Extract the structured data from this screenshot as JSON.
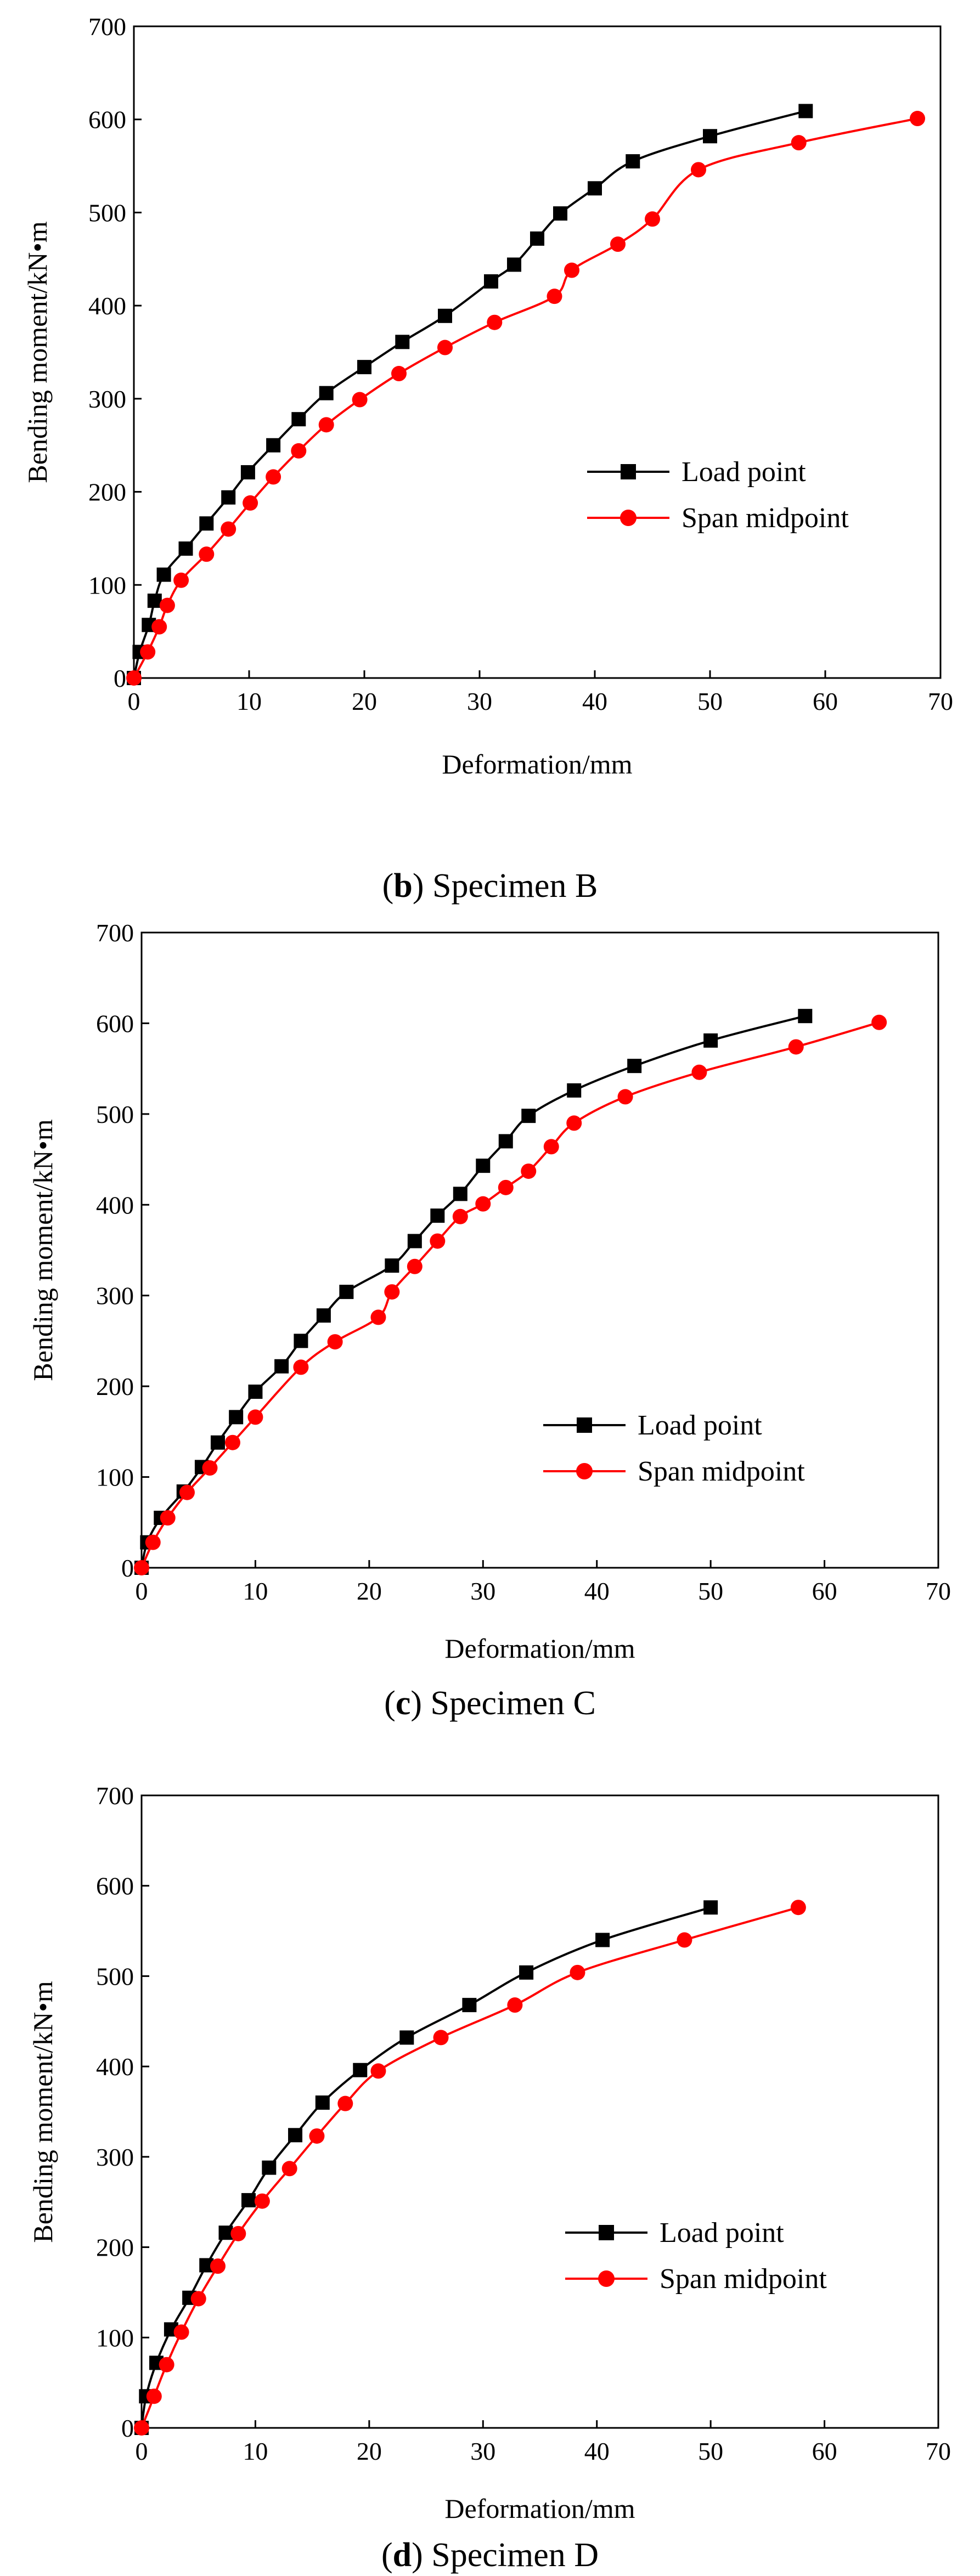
{
  "figure": {
    "panels": [
      {
        "caption": {
          "open": "(",
          "letter": "b",
          "rest": ") Specimen B"
        },
        "legend": {
          "series_1": "Load point",
          "series_2": "Span midpoint"
        }
      },
      {
        "caption": {
          "open": "(",
          "letter": "c",
          "rest": ") Specimen C"
        },
        "legend": {
          "series_1": "Load point",
          "series_2": "Span midpoint"
        }
      },
      {
        "caption": {
          "open": "(",
          "letter": "d",
          "rest": ") Specimen D"
        },
        "legend": {
          "series_1": "Load point",
          "series_2": "Span midpoint"
        }
      }
    ]
  },
  "chart_data": [
    {
      "type": "line",
      "title": "Specimen B",
      "xlabel": "Deformation/mm",
      "ylabel": "Bending moment/kN•m",
      "xlim": [
        0,
        70
      ],
      "ylim": [
        0,
        700
      ],
      "xticks": [
        0,
        10,
        20,
        30,
        40,
        50,
        60,
        70
      ],
      "yticks": [
        0,
        100,
        200,
        300,
        400,
        500,
        600,
        700
      ],
      "grid": false,
      "legend_position": "center-right",
      "series": [
        {
          "name": "Load point",
          "color": "#000000",
          "marker": "square",
          "x": [
            0,
            0.5,
            1.3,
            1.8,
            2.6,
            4.5,
            6.3,
            8.2,
            9.9,
            12.1,
            14.3,
            16.7,
            20.0,
            23.3,
            27.0,
            31.0,
            33.0,
            35.0,
            37.0,
            40.0,
            43.3,
            50.0,
            58.3
          ],
          "y": [
            0,
            28,
            57,
            83,
            111,
            139,
            166,
            194,
            221,
            250,
            278,
            306,
            334,
            361,
            389,
            426,
            444,
            472,
            499,
            526,
            555,
            582,
            609
          ]
        },
        {
          "name": "Span midpoint",
          "color": "#ff0000",
          "marker": "circle",
          "x": [
            0,
            1.2,
            2.2,
            2.9,
            4.1,
            6.3,
            8.2,
            10.1,
            12.1,
            14.3,
            16.7,
            19.6,
            23.0,
            27.0,
            31.3,
            36.5,
            38.0,
            42.0,
            45.0,
            49.0,
            57.7,
            68.0
          ],
          "y": [
            0,
            28,
            55,
            78,
            105,
            133,
            160,
            188,
            216,
            244,
            272,
            299,
            327,
            355,
            382,
            410,
            438,
            466,
            493,
            546,
            575,
            601
          ]
        }
      ]
    },
    {
      "type": "line",
      "title": "Specimen C",
      "xlabel": "Deformation/mm",
      "ylabel": "Bending moment/kN•m",
      "xlim": [
        0,
        70
      ],
      "ylim": [
        0,
        700
      ],
      "xticks": [
        0,
        10,
        20,
        30,
        40,
        50,
        60,
        70
      ],
      "yticks": [
        0,
        100,
        200,
        300,
        400,
        500,
        600,
        700
      ],
      "grid": false,
      "legend_position": "lower-right",
      "series": [
        {
          "name": "Load point",
          "color": "#000000",
          "marker": "square",
          "x": [
            0,
            0.5,
            1.7,
            3.7,
            5.3,
            6.7,
            8.3,
            10.0,
            12.3,
            14.0,
            16.0,
            18.0,
            22.0,
            24.0,
            26.0,
            28.0,
            30.0,
            32.0,
            34.0,
            38.0,
            43.3,
            50.0,
            58.3
          ],
          "y": [
            0,
            28,
            55,
            84,
            111,
            138,
            166,
            194,
            222,
            250,
            278,
            304,
            333,
            360,
            388,
            412,
            443,
            470,
            498,
            526,
            553,
            581,
            608
          ]
        },
        {
          "name": "Span midpoint",
          "color": "#ff0000",
          "marker": "circle",
          "x": [
            0,
            1.0,
            2.3,
            4.0,
            6.0,
            8.0,
            10.0,
            14.0,
            17.0,
            20.8,
            22.0,
            24.0,
            26.0,
            28.0,
            30.0,
            32.0,
            34.0,
            36.0,
            38.0,
            42.5,
            49.0,
            57.5,
            64.8
          ],
          "y": [
            0,
            28,
            55,
            83,
            110,
            138,
            166,
            221,
            249,
            276,
            304,
            332,
            360,
            387,
            401,
            419,
            437,
            464,
            490,
            519,
            546,
            574,
            601
          ]
        }
      ]
    },
    {
      "type": "line",
      "title": "Specimen D",
      "xlabel": "Deformation/mm",
      "ylabel": "Bending moment/kN•m",
      "xlim": [
        0,
        70
      ],
      "ylim": [
        0,
        700
      ],
      "xticks": [
        0,
        10,
        20,
        30,
        40,
        50,
        60,
        70
      ],
      "yticks": [
        0,
        100,
        200,
        300,
        400,
        500,
        600,
        700
      ],
      "grid": false,
      "legend_position": "lower-right",
      "series": [
        {
          "name": "Load point",
          "color": "#000000",
          "marker": "square",
          "x": [
            0,
            0.4,
            1.3,
            2.6,
            4.2,
            5.7,
            7.4,
            9.4,
            11.2,
            13.5,
            15.9,
            19.2,
            23.3,
            28.8,
            33.8,
            40.5,
            50.0
          ],
          "y": [
            0,
            35,
            72,
            109,
            144,
            180,
            216,
            252,
            288,
            324,
            360,
            396,
            432,
            468,
            504,
            540,
            576
          ]
        },
        {
          "name": "Span midpoint",
          "color": "#ff0000",
          "marker": "circle",
          "x": [
            0,
            1.1,
            2.2,
            3.5,
            5.0,
            6.7,
            8.5,
            10.6,
            13.0,
            15.4,
            17.9,
            20.8,
            26.3,
            32.8,
            38.3,
            47.7,
            57.7
          ],
          "y": [
            0,
            35,
            70,
            106,
            143,
            179,
            215,
            251,
            287,
            323,
            359,
            395,
            432,
            468,
            504,
            540,
            576
          ]
        }
      ]
    }
  ]
}
